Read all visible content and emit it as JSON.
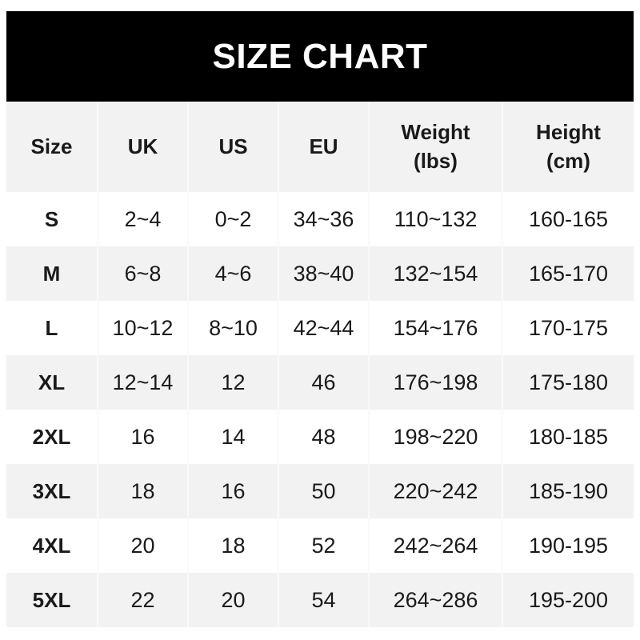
{
  "title": "SIZE CHART",
  "table": {
    "headers": [
      {
        "line1": "Size",
        "line2": ""
      },
      {
        "line1": "UK",
        "line2": ""
      },
      {
        "line1": "US",
        "line2": ""
      },
      {
        "line1": "EU",
        "line2": ""
      },
      {
        "line1": "Weight",
        "line2": "(lbs)"
      },
      {
        "line1": "Height",
        "line2": "(cm)"
      }
    ],
    "rows": [
      [
        "S",
        "2~4",
        "0~2",
        "34~36",
        "110~132",
        "160-165"
      ],
      [
        "M",
        "6~8",
        "4~6",
        "38~40",
        "132~154",
        "165-170"
      ],
      [
        "L",
        "10~12",
        "8~10",
        "42~44",
        "154~176",
        "170-175"
      ],
      [
        "XL",
        "12~14",
        "12",
        "46",
        "176~198",
        "175-180"
      ],
      [
        "2XL",
        "16",
        "14",
        "48",
        "198~220",
        "180-185"
      ],
      [
        "3XL",
        "18",
        "16",
        "50",
        "220~242",
        "185-190"
      ],
      [
        "4XL",
        "20",
        "18",
        "52",
        "242~264",
        "190-195"
      ],
      [
        "5XL",
        "22",
        "20",
        "54",
        "264~286",
        "195-200"
      ]
    ]
  }
}
